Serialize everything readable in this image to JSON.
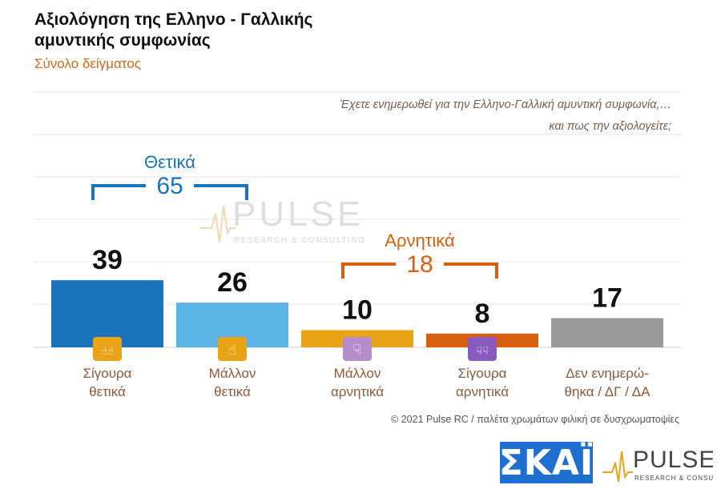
{
  "header": {
    "title": "Αξιολόγηση της Ελληνο - Γαλλικής αμυντικής συμφωνίας",
    "subtitle": "Σύνολο δείγματος",
    "question_line1": "Έχετε ενημερωθεί για την Ελληνο-Γαλλική αμυντική συμφωνία,…",
    "question_line2": "και πως την αξιολογείτε;"
  },
  "chart_data": {
    "type": "bar",
    "categories": [
      "Σίγουρα θετικά",
      "Μάλλον θετικά",
      "Μάλλον αρνητικά",
      "Σίγουρα αρνητικά",
      "Δεν ενημερώ-θηκα / ΔΓ / ΔΑ"
    ],
    "category_lines": [
      [
        "Σίγουρα",
        "θετικά"
      ],
      [
        "Μάλλον",
        "θετικά"
      ],
      [
        "Μάλλον",
        "αρνητικά"
      ],
      [
        "Σίγουρα",
        "αρνητικά"
      ],
      [
        "Δεν ενημερώ-",
        "θηκα / ΔΓ / ΔΑ"
      ]
    ],
    "values": [
      39,
      26,
      10,
      8,
      17
    ],
    "colors": [
      "#1a73bb",
      "#5cb3e6",
      "#e8a317",
      "#d95f0e",
      "#999999"
    ],
    "icons": [
      "two-thumbs-up-icon",
      "thumb-up-icon",
      "thumb-down-icon",
      "two-thumbs-down-icon",
      null
    ],
    "icon_colors": [
      "#e8a317",
      "#e8a317",
      "#b38cc9",
      "#8a5bbf",
      null
    ],
    "ylim": [
      0,
      60
    ],
    "grid": true,
    "groups": [
      {
        "label": "Θετικά",
        "total": "65",
        "color": "#1a73bb",
        "from": 0,
        "to": 1
      },
      {
        "label": "Αρνητικά",
        "total": "18",
        "color": "#d95f0e",
        "from": 2,
        "to": 3
      }
    ]
  },
  "watermark": {
    "brand": "PULSE",
    "tagline": "RESEARCH & CONSULTING"
  },
  "footer": {
    "credit": "© 2021 Pulse RC   /   παλέτα χρωμάτων φιλική σε δυσχρωματοψίες",
    "logo_skai": "ΣΚΑΪ",
    "logo_pulse": "PULSE",
    "logo_pulse_tagline": "RESEARCH & CONSULTING"
  }
}
